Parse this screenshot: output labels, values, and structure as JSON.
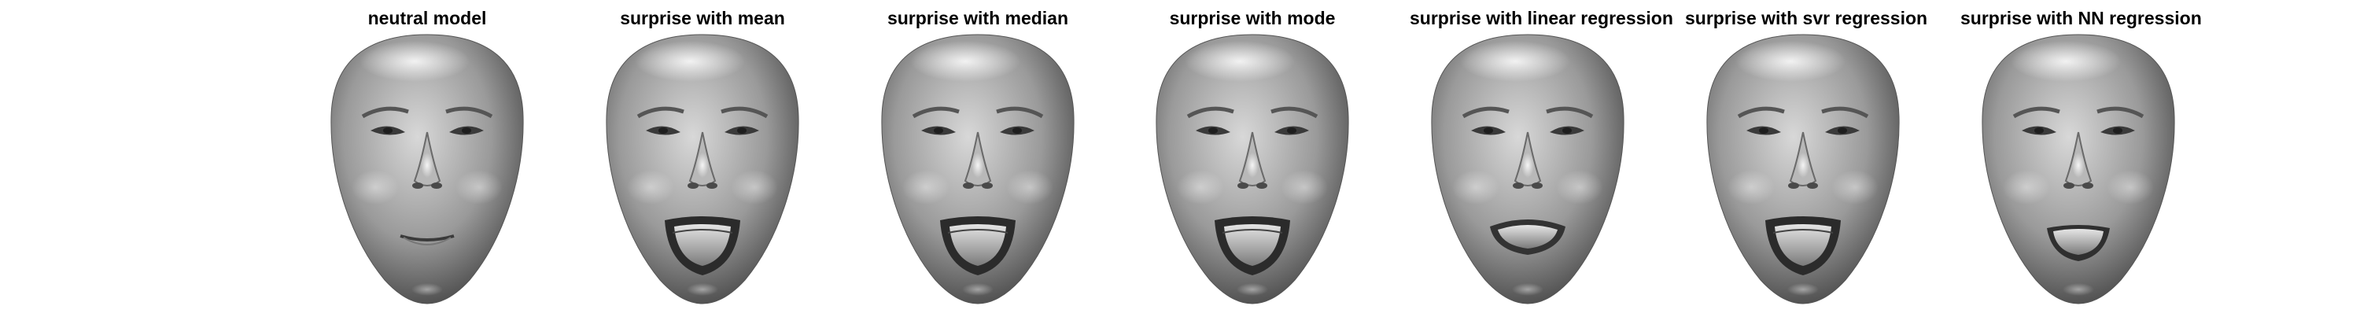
{
  "figure": {
    "panels": [
      {
        "title": "neutral model",
        "expression": "neutral"
      },
      {
        "title": "surprise with mean",
        "expression": "surprise"
      },
      {
        "title": "surprise with median",
        "expression": "surprise"
      },
      {
        "title": "surprise with mode",
        "expression": "surprise"
      },
      {
        "title": "surprise with linear regression",
        "expression": "grimace"
      },
      {
        "title": "surprise with svr regression",
        "expression": "surprise"
      },
      {
        "title": "surprise with NN regression",
        "expression": "smile"
      }
    ]
  }
}
